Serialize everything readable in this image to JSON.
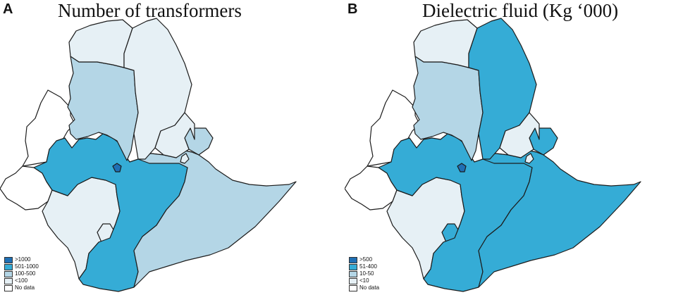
{
  "colors": {
    "dark": "#1f6fb4",
    "medium": "#35acd6",
    "light": "#b4d6e6",
    "pale": "#e6f0f5",
    "nodata": "#ffffff",
    "border": "#1c1c1c"
  },
  "panel_a": {
    "letter": "A",
    "title": "Number of transformers",
    "legend": [
      {
        "label": ">1000",
        "color": "#1f6fb4"
      },
      {
        "label": "501-1000",
        "color": "#35acd6"
      },
      {
        "label": "100-500",
        "color": "#b4d6e6"
      },
      {
        "label": "<100",
        "color": "#e6f0f5"
      },
      {
        "label": "No data",
        "color": "#ffffff"
      }
    ],
    "regions": {
      "tigray": "pale",
      "afar": "pale",
      "amhara": "light",
      "benishangul": "nodata",
      "oromia": "medium",
      "addis_ababa": "dark",
      "dire_dawa": "pale",
      "harari": "pale",
      "somali": "light",
      "gambela": "nodata",
      "snnpr": "pale",
      "sidama": "pale",
      "east_oromia": "light"
    }
  },
  "panel_b": {
    "letter": "B",
    "title": "Dielectric fluid (Kg ‘000)",
    "legend": [
      {
        "label": ">500",
        "color": "#1f6fb4"
      },
      {
        "label": "51-400",
        "color": "#35acd6"
      },
      {
        "label": "10-50",
        "color": "#b4d6e6"
      },
      {
        "label": "<10",
        "color": "#e6f0f5"
      },
      {
        "label": "No data",
        "color": "#ffffff"
      }
    ],
    "regions": {
      "tigray": "pale",
      "afar": "medium",
      "amhara": "light",
      "benishangul": "nodata",
      "oromia": "medium",
      "addis_ababa": "dark",
      "dire_dawa": "pale",
      "harari": "pale",
      "somali": "medium",
      "gambela": "nodata",
      "snnpr": "pale",
      "sidama": "medium",
      "east_oromia": "medium"
    }
  }
}
